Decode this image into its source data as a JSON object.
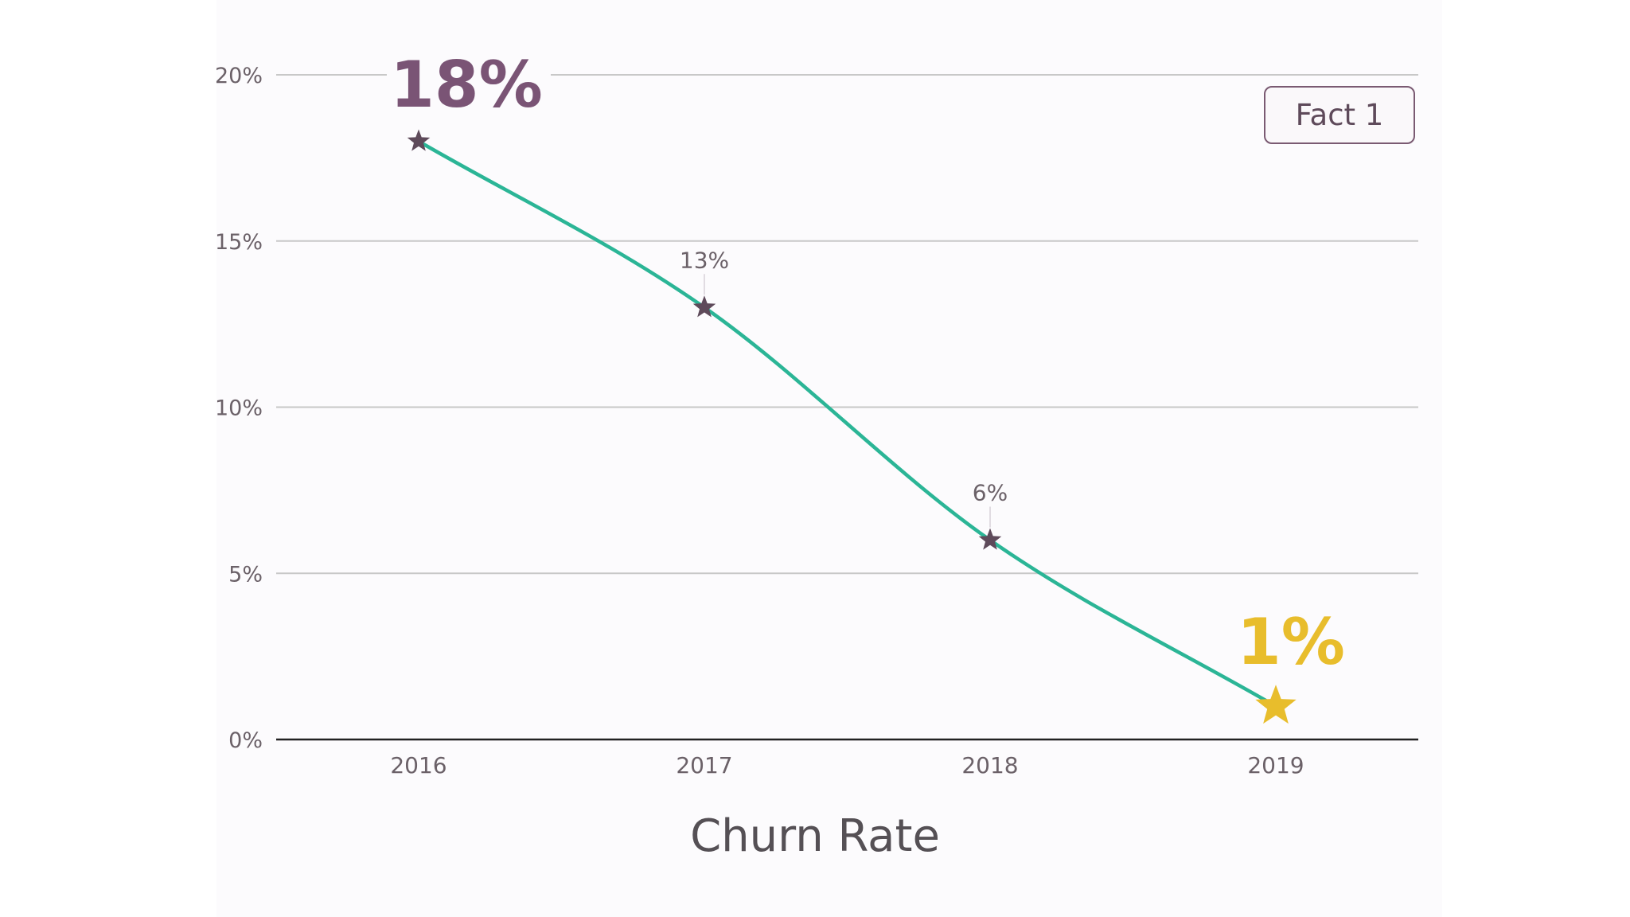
{
  "badge": {
    "label": "Fact 1"
  },
  "chart_data": {
    "type": "line",
    "title": "Churn Rate",
    "xlabel": "",
    "ylabel": "",
    "categories": [
      "2016",
      "2017",
      "2018",
      "2019"
    ],
    "series": [
      {
        "values": [
          18,
          13,
          6,
          1
        ]
      }
    ],
    "point_labels": [
      "18%",
      "13%",
      "6%",
      "1%"
    ],
    "y_ticks": [
      {
        "value": 0,
        "label": "0%"
      },
      {
        "value": 5,
        "label": "5%"
      },
      {
        "value": 10,
        "label": "10%"
      },
      {
        "value": 15,
        "label": "15%"
      },
      {
        "value": 20,
        "label": "20%"
      }
    ],
    "ylim": [
      0,
      20
    ],
    "grid": true,
    "marker": "star",
    "colors": {
      "line": "#2bb596",
      "marker": "#5e4a5a",
      "highlight_max": "#7a5475",
      "highlight_min": "#e8bd2c",
      "grid": "#c8c8c8",
      "axis": "#222222",
      "tick_text": "#6b6168"
    }
  }
}
